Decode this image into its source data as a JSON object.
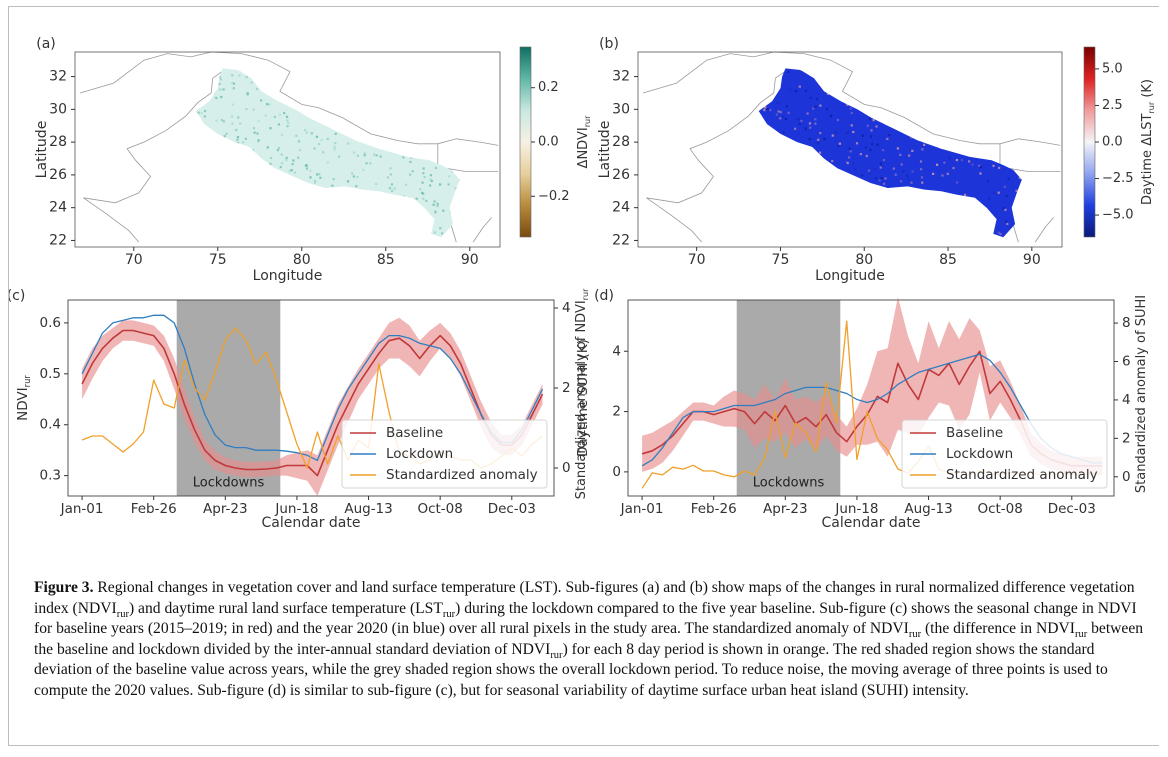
{
  "figure": {
    "label": "Figure 3.",
    "caption_parts": [
      {
        "t": "Regional changes in vegetation cover and land surface temperature (LST). Sub-figures (a) and (b) show maps of the changes in rural normalized difference vegetation index (NDVI"
      },
      {
        "sub": "rur"
      },
      {
        "t": ") and daytime rural land surface temperature (LST"
      },
      {
        "sub": "rur"
      },
      {
        "t": ") during the lockdown compared to the five year baseline. Sub-figure (c) shows the seasonal change in NDVI for baseline years (2015–2019; in red) and the year 2020 (in blue) over all rural pixels in the study area. The standardized anomaly of NDVI"
      },
      {
        "sub": "rur"
      },
      {
        "t": " (the difference in NDVI"
      },
      {
        "sub": "rur"
      },
      {
        "t": " between the baseline and lockdown divided by the inter-annual standard deviation of NDVI"
      },
      {
        "sub": "rur"
      },
      {
        "t": ") for each 8 day period is shown in orange. The red shaded region shows the standard deviation of the baseline value across years, while the grey shaded region shows the overall lockdown period. To reduce noise, the moving average of three points is used to compute the 2020 values. Sub-figure (d) is similar to sub-figure (c), but for seasonal variability of daytime surface urban heat island (SUHI) intensity."
      }
    ]
  },
  "maps": [
    {
      "panel": "(a)",
      "xlabel": "Longitude",
      "ylabel": "Latitude",
      "xticks": [
        70,
        75,
        80,
        85,
        90
      ],
      "yticks": [
        22,
        24,
        26,
        28,
        30,
        32
      ],
      "xlim": [
        66.5,
        91.8
      ],
      "ylim": [
        21.6,
        33.5
      ],
      "colorbar": {
        "label": "ΔNDVI",
        "label_sub": "rur",
        "range": [
          -0.35,
          0.35
        ],
        "ticks": [
          {
            "v": 0.2,
            "t": "0.2"
          },
          {
            "v": 0.0,
            "t": "0.0"
          },
          {
            "v": -0.2,
            "t": "−0.2"
          }
        ],
        "colors": [
          "#7a4a12",
          "#b88a3c",
          "#e7cf9c",
          "#f6f1e4",
          "#c9e8e0",
          "#5fb7a6",
          "#0f6f62"
        ]
      },
      "fill": "#d7efea",
      "speckle": "#5fb7a6"
    },
    {
      "panel": "(b)",
      "xlabel": "Longitude",
      "ylabel": "Latitude",
      "xticks": [
        70,
        75,
        80,
        85,
        90
      ],
      "yticks": [
        22,
        24,
        26,
        28,
        30,
        32
      ],
      "xlim": [
        66.5,
        91.8
      ],
      "ylim": [
        21.6,
        33.5
      ],
      "colorbar": {
        "label": "Daytime ΔLST",
        "label_sub": "rur",
        "label_tail": " (K)",
        "range": [
          -6.5,
          6.5
        ],
        "ticks": [
          {
            "v": 5.0,
            "t": "5.0"
          },
          {
            "v": 2.5,
            "t": "2.5"
          },
          {
            "v": 0.0,
            "t": "0.0"
          },
          {
            "v": -2.5,
            "t": "−2.5"
          },
          {
            "v": -5.0,
            "t": "−5.0"
          }
        ],
        "colors": [
          "#0a1a7a",
          "#1f3fe0",
          "#8fa2ef",
          "#f4f4f8",
          "#f19a9a",
          "#dd2222",
          "#7a0000"
        ]
      },
      "fill": "#1d35d8",
      "speckle": "#e9a3a8"
    }
  ],
  "chart_data": [
    {
      "type": "line",
      "panel": "(c)",
      "xlabel": "Calendar date",
      "ylabel": "NDVI",
      "ylabel_sub": "rur",
      "y2label": "Standardized anomaly of NDVI",
      "y2label_sub": "rur",
      "xticks": [
        {
          "v": 1,
          "t": "Jan-01"
        },
        {
          "v": 57,
          "t": "Feb-26"
        },
        {
          "v": 113,
          "t": "Apr-23"
        },
        {
          "v": 169,
          "t": "Jun-18"
        },
        {
          "v": 225,
          "t": "Aug-13"
        },
        {
          "v": 281,
          "t": "Oct-08"
        },
        {
          "v": 337,
          "t": "Dec-03"
        }
      ],
      "xlim": [
        -10,
        370
      ],
      "ylim": [
        0.26,
        0.645
      ],
      "yticks": [
        0.3,
        0.4,
        0.5,
        0.6
      ],
      "y2lim": [
        -0.7,
        4.2
      ],
      "y2ticks": [
        0,
        2,
        4
      ],
      "shade": {
        "x0": 75,
        "x1": 156,
        "label": "Lockdowns"
      },
      "x": [
        1,
        9,
        17,
        25,
        33,
        41,
        49,
        57,
        65,
        73,
        81,
        89,
        97,
        105,
        113,
        121,
        129,
        137,
        145,
        153,
        161,
        169,
        177,
        185,
        193,
        201,
        209,
        217,
        225,
        233,
        241,
        249,
        257,
        265,
        273,
        281,
        289,
        297,
        305,
        313,
        321,
        329,
        337,
        345,
        353,
        361
      ],
      "series": [
        {
          "name": "Baseline",
          "color": "#c0393b",
          "band_color": "#e88f8f",
          "axis": "left",
          "values": [
            0.48,
            0.52,
            0.55,
            0.57,
            0.585,
            0.585,
            0.58,
            0.575,
            0.55,
            0.5,
            0.44,
            0.39,
            0.35,
            0.33,
            0.32,
            0.315,
            0.312,
            0.312,
            0.313,
            0.315,
            0.32,
            0.32,
            0.32,
            0.3,
            0.35,
            0.4,
            0.44,
            0.48,
            0.51,
            0.54,
            0.565,
            0.57,
            0.555,
            0.53,
            0.555,
            0.575,
            0.555,
            0.52,
            0.47,
            0.42,
            0.38,
            0.36,
            0.36,
            0.38,
            0.42,
            0.46
          ],
          "band": [
            0.03,
            0.03,
            0.025,
            0.02,
            0.02,
            0.02,
            0.02,
            0.02,
            0.025,
            0.03,
            0.03,
            0.025,
            0.02,
            0.018,
            0.016,
            0.015,
            0.015,
            0.015,
            0.015,
            0.015,
            0.02,
            0.025,
            0.03,
            0.04,
            0.04,
            0.04,
            0.035,
            0.03,
            0.03,
            0.03,
            0.035,
            0.04,
            0.04,
            0.035,
            0.03,
            0.025,
            0.025,
            0.025,
            0.025,
            0.025,
            0.025,
            0.02,
            0.02,
            0.02,
            0.02,
            0.02
          ]
        },
        {
          "name": "Lockdown",
          "color": "#2f7ec2",
          "axis": "left",
          "values": [
            0.5,
            0.54,
            0.58,
            0.6,
            0.605,
            0.61,
            0.61,
            0.615,
            0.615,
            0.6,
            0.55,
            0.48,
            0.42,
            0.38,
            0.36,
            0.355,
            0.355,
            0.35,
            0.35,
            0.35,
            0.348,
            0.345,
            0.34,
            0.33,
            0.38,
            0.43,
            0.47,
            0.5,
            0.53,
            0.56,
            0.575,
            0.575,
            0.57,
            0.56,
            0.555,
            0.55,
            0.53,
            0.5,
            0.46,
            0.42,
            0.385,
            0.365,
            0.365,
            0.39,
            0.43,
            0.47
          ]
        },
        {
          "name": "Standardized anomaly",
          "color": "#f0a02a",
          "axis": "right",
          "values": [
            0.7,
            0.8,
            0.8,
            0.6,
            0.4,
            0.6,
            0.9,
            2.2,
            1.6,
            1.5,
            2.7,
            2.0,
            1.7,
            2.4,
            3.2,
            3.5,
            3.2,
            2.6,
            2.9,
            2.2,
            1.4,
            0.6,
            0.0,
            0.9,
            0.1,
            0.8,
            0.2,
            0.7,
            0.5,
            2.6,
            1.4,
            0.4,
            0.3,
            0.1,
            0.2,
            0.4,
            0.3,
            0.2,
            0.2,
            0.0,
            0.1,
            0.3,
            0.5,
            0.3,
            0.6,
            0.8
          ]
        }
      ],
      "legend": "lower-right"
    },
    {
      "type": "line",
      "panel": "(d)",
      "xlabel": "Calendar date",
      "ylabel": "Daytime SUHI (K)",
      "y2label": "Standardized anomaly of SUHI",
      "xticks": [
        {
          "v": 1,
          "t": "Jan-01"
        },
        {
          "v": 57,
          "t": "Feb-26"
        },
        {
          "v": 113,
          "t": "Apr-23"
        },
        {
          "v": 169,
          "t": "Jun-18"
        },
        {
          "v": 225,
          "t": "Aug-13"
        },
        {
          "v": 281,
          "t": "Oct-08"
        },
        {
          "v": 337,
          "t": "Dec-03"
        }
      ],
      "xlim": [
        -10,
        370
      ],
      "ylim": [
        -0.8,
        5.7
      ],
      "yticks": [
        0,
        2,
        4
      ],
      "y2lim": [
        -1.0,
        9.2
      ],
      "y2ticks": [
        0,
        2,
        4,
        6,
        8
      ],
      "shade": {
        "x0": 75,
        "x1": 156,
        "label": "Lockdowns"
      },
      "x": [
        1,
        9,
        17,
        25,
        33,
        41,
        49,
        57,
        65,
        73,
        81,
        89,
        97,
        105,
        113,
        121,
        129,
        137,
        145,
        153,
        161,
        169,
        177,
        185,
        193,
        201,
        209,
        217,
        225,
        233,
        241,
        249,
        257,
        265,
        273,
        281,
        289,
        297,
        305,
        313,
        321,
        329,
        337,
        345,
        353,
        361
      ],
      "series": [
        {
          "name": "Baseline",
          "color": "#c0393b",
          "band_color": "#e88f8f",
          "axis": "left",
          "values": [
            0.6,
            0.7,
            0.9,
            1.2,
            1.6,
            2.0,
            2.0,
            1.9,
            2.0,
            2.1,
            2.0,
            1.6,
            2.0,
            1.7,
            2.2,
            1.6,
            1.8,
            1.5,
            1.9,
            1.3,
            1.0,
            1.5,
            1.9,
            2.5,
            2.3,
            3.6,
            2.9,
            2.4,
            3.4,
            3.2,
            3.6,
            2.9,
            3.5,
            4.0,
            2.6,
            3.0,
            2.4,
            1.7,
            0.9,
            0.6,
            0.4,
            0.3,
            0.2,
            0.2,
            0.2,
            0.2
          ],
          "band": [
            0.6,
            0.6,
            0.6,
            0.5,
            0.4,
            0.3,
            0.3,
            0.3,
            0.5,
            0.6,
            0.6,
            0.8,
            0.9,
            0.7,
            0.9,
            0.8,
            0.7,
            0.8,
            0.7,
            0.6,
            0.5,
            0.6,
            1.0,
            1.5,
            1.8,
            2.2,
            1.6,
            1.2,
            1.6,
            0.9,
            1.4,
            1.5,
            1.6,
            0.7,
            0.9,
            0.7,
            0.6,
            0.5,
            0.4,
            0.35,
            0.3,
            0.3,
            0.3,
            0.3,
            0.3,
            0.3
          ]
        },
        {
          "name": "Lockdown",
          "color": "#2f7ec2",
          "axis": "left",
          "values": [
            0.2,
            0.4,
            0.8,
            1.3,
            1.8,
            2.0,
            2.0,
            2.0,
            2.1,
            2.2,
            2.2,
            2.2,
            2.3,
            2.4,
            2.6,
            2.7,
            2.8,
            2.8,
            2.8,
            2.7,
            2.6,
            2.4,
            2.3,
            2.4,
            2.6,
            2.9,
            3.1,
            3.3,
            3.4,
            3.5,
            3.6,
            3.7,
            3.8,
            3.9,
            3.7,
            3.3,
            2.8,
            2.2,
            1.6,
            1.1,
            0.8,
            0.6,
            0.5,
            0.4,
            0.3,
            0.3
          ]
        },
        {
          "name": "Standardized anomaly",
          "color": "#f0a02a",
          "axis": "right",
          "values": [
            -0.6,
            0.2,
            0.1,
            0.5,
            0.4,
            0.6,
            0.3,
            0.3,
            0.1,
            0.0,
            0.3,
            0.1,
            1.0,
            3.4,
            1.0,
            2.8,
            2.3,
            1.3,
            4.9,
            2.8,
            8.1,
            0.9,
            3.4,
            2.0,
            1.4,
            0.4,
            0.2,
            0.8,
            1.6,
            0.4,
            0.2,
            0.2,
            0.1,
            0.3,
            0.2,
            0.1,
            0.2,
            0.1,
            0.2,
            0.1,
            0.1,
            0.2,
            0.1,
            0.2,
            0.1,
            0.2
          ]
        }
      ],
      "legend": "lower-right"
    }
  ]
}
